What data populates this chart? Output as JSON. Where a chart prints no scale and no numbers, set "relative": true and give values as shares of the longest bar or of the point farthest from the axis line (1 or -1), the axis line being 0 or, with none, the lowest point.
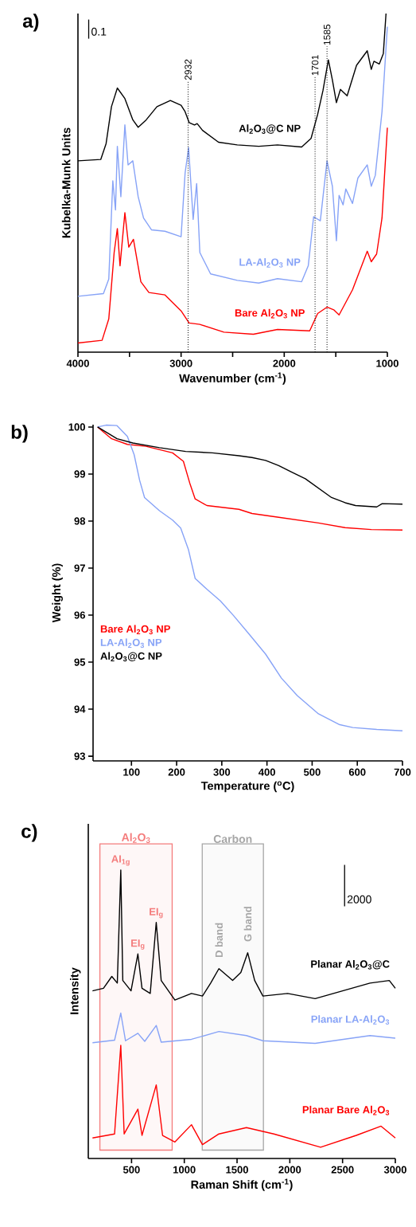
{
  "chart_data": [
    {
      "type": "line",
      "title": "a)",
      "xlabel": "Wavenumber (cm$^{-1}$)",
      "ylabel": "Kubelka-Munk Units",
      "relative": true,
      "xlim": [
        4000,
        1000
      ],
      "xticks": [
        4000,
        {
          "value": 3500,
          "label": null
        },
        3000,
        {
          "value": 2500,
          "label": null
        },
        2000,
        {
          "value": 1500,
          "label": null
        },
        1000
      ],
      "series": [
        {
          "name": "Al$_{2}$O$_{3}$@C NP",
          "color": "#000000",
          "x": [
            4000,
            3779,
            3727,
            3675,
            3618,
            3545,
            3468,
            3416,
            3338,
            3234,
            3104,
            3000,
            2961,
            2922,
            2870,
            2844,
            2792,
            2637,
            2455,
            2247,
            2065,
            1831,
            1740,
            1676,
            1624,
            1572,
            1533,
            1494,
            1455,
            1390,
            1299,
            1195,
            1156,
            1130,
            1078,
            1039,
            1013
          ],
          "values": [
            0.565,
            0.569,
            0.616,
            0.725,
            0.78,
            0.749,
            0.686,
            0.664,
            0.686,
            0.725,
            0.743,
            0.729,
            0.71,
            0.678,
            0.671,
            0.675,
            0.655,
            0.62,
            0.612,
            0.608,
            0.612,
            0.606,
            0.631,
            0.702,
            0.773,
            0.863,
            0.804,
            0.737,
            0.776,
            0.757,
            0.847,
            0.89,
            0.835,
            0.859,
            0.851,
            0.882,
            1.0
          ]
        },
        {
          "name": "LA-Al$_{2}$O$_{3}$ NP",
          "color": "#87a3f7",
          "x": [
            4000,
            3753,
            3701,
            3662,
            3636,
            3618,
            3584,
            3545,
            3514,
            3468,
            3416,
            3364,
            3286,
            3156,
            3000,
            2961,
            2927,
            2883,
            2849,
            2818,
            2714,
            2455,
            2247,
            2065,
            1831,
            1767,
            1715,
            1650,
            1585,
            1533,
            1494,
            1468,
            1429,
            1403,
            1338,
            1286,
            1195,
            1156,
            1117,
            1052,
            1000
          ],
          "values": [
            0.165,
            0.173,
            0.216,
            0.506,
            0.42,
            0.608,
            0.459,
            0.671,
            0.553,
            0.565,
            0.459,
            0.396,
            0.361,
            0.357,
            0.341,
            0.529,
            0.604,
            0.392,
            0.498,
            0.294,
            0.231,
            0.212,
            0.204,
            0.217,
            0.208,
            0.255,
            0.4,
            0.388,
            0.565,
            0.49,
            0.329,
            0.463,
            0.435,
            0.482,
            0.439,
            0.514,
            0.553,
            0.49,
            0.522,
            0.71,
            0.961
          ]
        },
        {
          "name": "Bare Al$_{2}$O$_{3}$ NP",
          "color": "#ff0000",
          "x": [
            4000,
            3766,
            3701,
            3649,
            3618,
            3592,
            3545,
            3507,
            3462,
            3390,
            3312,
            3156,
            3000,
            2922,
            2818,
            2585,
            2299,
            2065,
            1753,
            1676,
            1585,
            1520,
            1468,
            1338,
            1195,
            1156,
            1104,
            1052,
            1000
          ],
          "values": [
            0.027,
            0.035,
            0.098,
            0.294,
            0.365,
            0.255,
            0.412,
            0.31,
            0.333,
            0.208,
            0.176,
            0.169,
            0.122,
            0.086,
            0.082,
            0.059,
            0.053,
            0.067,
            0.063,
            0.114,
            0.133,
            0.125,
            0.11,
            0.184,
            0.298,
            0.267,
            0.29,
            0.396,
            0.663
          ]
        }
      ],
      "ref_lines": [
        {
          "axis": "x",
          "value": 2932,
          "label": "2932",
          "line_style": "dotted"
        },
        {
          "axis": "x",
          "value": 1701,
          "label": "1701",
          "line_style": "dotted"
        },
        {
          "axis": "x",
          "value": 1585,
          "label": "1585",
          "line_style": "dotted"
        }
      ],
      "annotations": [
        "0.1"
      ]
    },
    {
      "type": "line",
      "title": "b)",
      "xlabel": "Temperature ($^{o}$C)",
      "ylabel": "Weight (%)",
      "xlim": [
        15,
        700
      ],
      "xticks": [
        100,
        200,
        300,
        400,
        500,
        600,
        700
      ],
      "ylim": [
        92.9,
        100.05
      ],
      "yticks": [
        93,
        94,
        95,
        96,
        97,
        98,
        99,
        100
      ],
      "legend": "left",
      "series": [
        {
          "name": "Bare Al$_{2}$O$_{3}$ NP",
          "color": "#ff0000",
          "x": [
            25,
            56,
            91,
            132,
            191,
            215,
            229,
            241,
            267,
            338,
            367,
            426,
            514,
            573,
            631,
            700
          ],
          "values": [
            100.0,
            99.75,
            99.63,
            99.59,
            99.45,
            99.27,
            98.81,
            98.47,
            98.33,
            98.25,
            98.16,
            98.08,
            97.96,
            97.86,
            97.82,
            97.81
          ]
        },
        {
          "name": "LA-Al$_{2}$O$_{3}$ NP",
          "color": "#87a3f7",
          "x": [
            25,
            44,
            68,
            91,
            106,
            118,
            129,
            162,
            191,
            209,
            226,
            241,
            267,
            297,
            326,
            361,
            397,
            432,
            467,
            514,
            561,
            590,
            643,
            700
          ],
          "values": [
            100.0,
            100.04,
            100.03,
            99.8,
            99.41,
            98.87,
            98.5,
            98.22,
            98.02,
            97.85,
            97.4,
            96.78,
            96.55,
            96.3,
            95.99,
            95.59,
            95.17,
            94.66,
            94.29,
            93.9,
            93.67,
            93.61,
            93.57,
            93.54
          ]
        },
        {
          "name": "Al$_{2}$O$_{3}$@C NP",
          "color": "#000000",
          "x": [
            25,
            44,
            68,
            103,
            162,
            220,
            279,
            338,
            367,
            397,
            426,
            455,
            485,
            514,
            543,
            573,
            596,
            643,
            655,
            700
          ],
          "values": [
            100.0,
            99.89,
            99.75,
            99.66,
            99.56,
            99.48,
            99.45,
            99.39,
            99.35,
            99.29,
            99.18,
            99.04,
            98.9,
            98.7,
            98.5,
            98.39,
            98.33,
            98.3,
            98.37,
            98.36
          ]
        }
      ]
    },
    {
      "type": "line",
      "title": "c)",
      "xlabel": "Raman Shift (cm$^{-1}$)",
      "ylabel": "Intensity",
      "relative": true,
      "xlim": [
        90,
        3000
      ],
      "xticks": [
        500,
        1000,
        1500,
        2000,
        2500,
        3000
      ],
      "series": [
        {
          "name": "Planar Al$_{2}$O$_{3}$@C",
          "color": "#000000",
          "x": [
            130,
            234,
            313,
            365,
            398,
            417,
            495,
            560,
            599,
            677,
            734,
            781,
            911,
            1068,
            1172,
            1250,
            1328,
            1458,
            1536,
            1601,
            1667,
            1745,
            1979,
            2240,
            2500,
            2760,
            2943,
            3000
          ],
          "values": [
            0.581,
            0.59,
            0.631,
            0.608,
            1.0,
            0.617,
            0.581,
            0.709,
            0.59,
            0.572,
            0.818,
            0.617,
            0.549,
            0.572,
            0.563,
            0.608,
            0.658,
            0.617,
            0.645,
            0.713,
            0.617,
            0.563,
            0.572,
            0.554,
            0.581,
            0.608,
            0.617,
            0.59
          ]
        },
        {
          "name": "Planar LA-Al$_{2}$O$_{3}$",
          "color": "#87a3f7",
          "x": [
            130,
            339,
            398,
            443,
            560,
            625,
            734,
            781,
            1068,
            1328,
            1589,
            1745,
            2240,
            2760,
            3000
          ],
          "values": [
            0.401,
            0.41,
            0.504,
            0.408,
            0.434,
            0.406,
            0.461,
            0.403,
            0.413,
            0.44,
            0.426,
            0.408,
            0.399,
            0.426,
            0.417
          ]
        },
        {
          "name": "Planar Bare Al$_{2}$O$_{3}$",
          "color": "#ff0000",
          "x": [
            130,
            339,
            398,
            430,
            560,
            599,
            734,
            794,
            911,
            1068,
            1172,
            1328,
            1589,
            1849,
            2292,
            2630,
            2865,
            3000
          ],
          "values": [
            0.071,
            0.085,
            0.392,
            0.085,
            0.171,
            0.08,
            0.255,
            0.08,
            0.057,
            0.117,
            0.048,
            0.085,
            0.107,
            0.085,
            0.039,
            0.08,
            0.112,
            0.071
          ]
        }
      ],
      "bands": [
        {
          "axis": "x",
          "from": 200,
          "to": 885,
          "label": "Al$_{2}$O$_{3}$",
          "color": "#f47c7c"
        },
        {
          "axis": "x",
          "from": 1170,
          "to": 1750,
          "label": "Carbon",
          "color": "#a6a6a6"
        }
      ],
      "annotations": [
        "2000",
        {
          "text": "AI$_{1g}$",
          "x": 398,
          "y": 1.0
        },
        {
          "text": "EI$_{g}$",
          "x": 560,
          "y": 0.709
        },
        {
          "text": "EI$_{g}$",
          "x": 734,
          "y": 0.818
        },
        {
          "text": "D band",
          "x": 1328,
          "y": 0.658
        },
        {
          "text": "G band",
          "x": 1601,
          "y": 0.713
        }
      ]
    }
  ]
}
